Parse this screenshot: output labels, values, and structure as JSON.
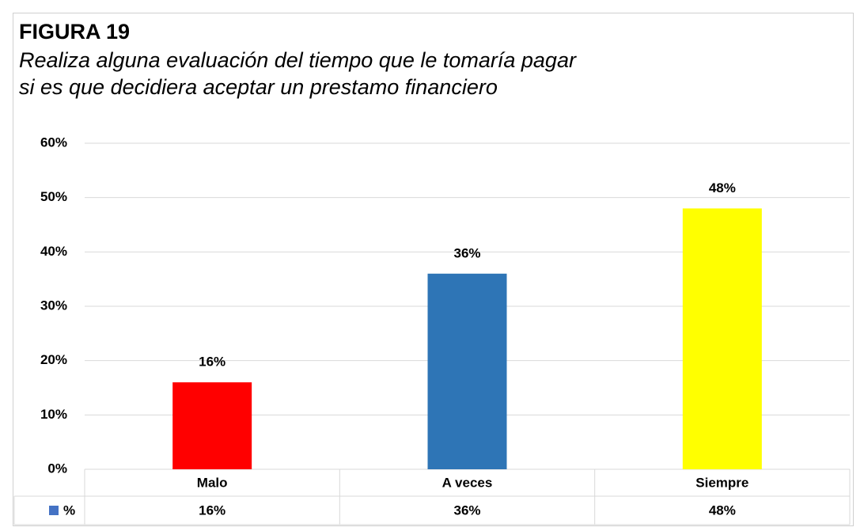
{
  "chart_data": {
    "type": "bar",
    "title": "FIGURA 19",
    "subtitle": [
      "Realiza alguna evaluación del tiempo que le tomaría pagar",
      "si es que decidiera aceptar un prestamo financiero"
    ],
    "categories": [
      "Malo",
      "A veces",
      "Siempre"
    ],
    "series": [
      {
        "name": "%",
        "color": "#4472c4",
        "values": [
          16,
          36,
          48
        ],
        "value_labels": [
          "16%",
          "36%",
          "48%"
        ]
      }
    ],
    "bar_colors": [
      "#ff0000",
      "#2e75b6",
      "#ffff00"
    ],
    "ylim": [
      0,
      60
    ],
    "yticks": [
      {
        "value": 0,
        "label": "0%"
      },
      {
        "value": 10,
        "label": "10%"
      },
      {
        "value": 20,
        "label": "20%"
      },
      {
        "value": 30,
        "label": "30%"
      },
      {
        "value": 40,
        "label": "40%"
      },
      {
        "value": 50,
        "label": "50%"
      },
      {
        "value": 60,
        "label": "60%"
      }
    ],
    "grid": true,
    "data_table": true
  }
}
